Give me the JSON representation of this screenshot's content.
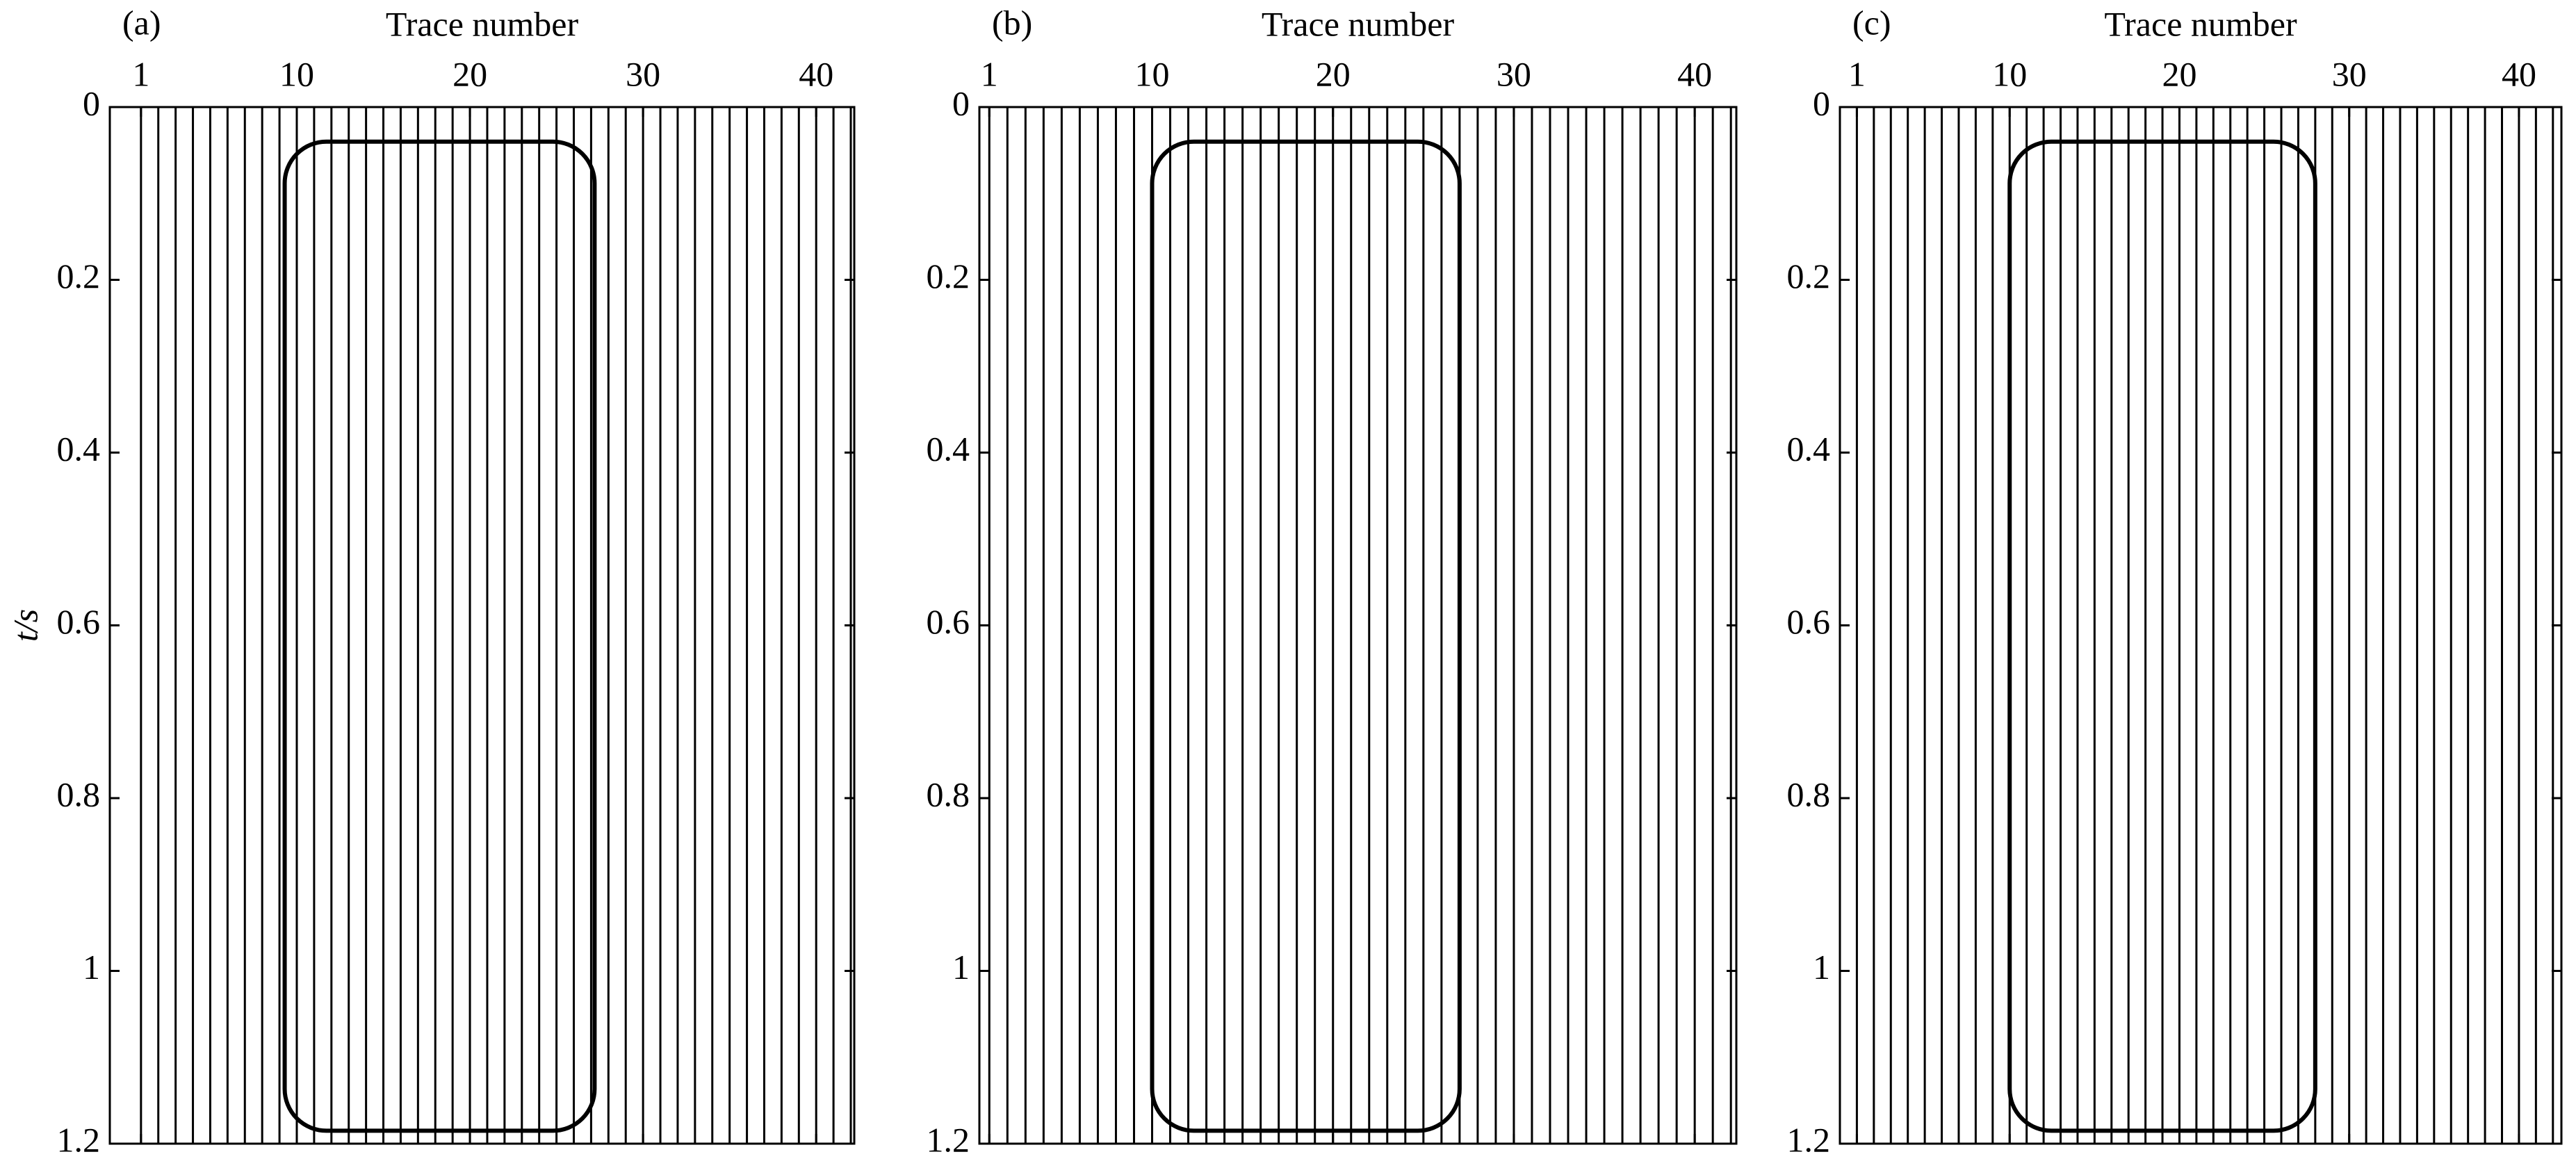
{
  "chart_data": [
    {
      "type": "seismic",
      "panel_label": "(a)",
      "xlabel": "Trace number",
      "ylabel": "t/s",
      "traces": [
        1,
        2,
        3,
        4,
        5,
        6,
        7,
        8,
        9,
        10,
        11,
        12,
        13,
        14,
        15,
        16,
        17,
        18,
        19,
        20,
        21,
        22,
        23,
        24,
        25,
        26,
        27,
        28,
        29,
        30,
        31,
        32,
        33,
        34,
        35,
        36,
        37,
        38,
        39,
        40,
        41,
        42
      ],
      "highlight": {
        "x": [
          9.3,
          27.2
        ],
        "y": [
          0.04,
          1.185
        ]
      },
      "xlim": [
        -0.8,
        42.2
      ],
      "xticks": [
        1,
        10,
        20,
        30,
        40
      ],
      "ylim": [
        0,
        1.2
      ],
      "yticks": [
        0,
        0.2,
        0.4,
        0.6,
        0.8,
        1,
        1.2
      ]
    },
    {
      "type": "seismic",
      "panel_label": "(b)",
      "xlabel": "Trace number",
      "traces": [
        1,
        2,
        3,
        4,
        5,
        6,
        7,
        8,
        9,
        10,
        11,
        12,
        13,
        14,
        15,
        16,
        17,
        18,
        19,
        20,
        21,
        22,
        23,
        24,
        25,
        26,
        27,
        28,
        29,
        30,
        31,
        32,
        33,
        34,
        35,
        36,
        37,
        38,
        39,
        40,
        41,
        42
      ],
      "highlight": {
        "x": [
          10,
          27
        ],
        "y": [
          0.04,
          1.185
        ]
      },
      "xlim": [
        0.45,
        42.3
      ],
      "xticks": [
        1,
        10,
        20,
        30,
        40
      ],
      "ylim": [
        0,
        1.2
      ],
      "yticks": [
        0,
        0.2,
        0.4,
        0.6,
        0.8,
        1,
        1.2
      ]
    },
    {
      "type": "seismic",
      "panel_label": "(c)",
      "xlabel": "Trace number",
      "traces": [
        1,
        2,
        3,
        4,
        5,
        6,
        7,
        8,
        9,
        10,
        11,
        12,
        13,
        14,
        15,
        16,
        17,
        18,
        19,
        20,
        21,
        22,
        23,
        24,
        25,
        26,
        27,
        28,
        29,
        30,
        31,
        32,
        33,
        34,
        35,
        36,
        37,
        38,
        39,
        40,
        41,
        42
      ],
      "highlight": {
        "x": [
          10,
          28
        ],
        "y": [
          0.04,
          1.185
        ]
      },
      "xlim": [
        0,
        42.5
      ],
      "xticks": [
        1,
        10,
        20,
        30,
        40
      ],
      "ylim": [
        0,
        1.2
      ],
      "yticks": [
        0,
        0.2,
        0.4,
        0.6,
        0.8,
        1,
        1.2
      ]
    }
  ]
}
